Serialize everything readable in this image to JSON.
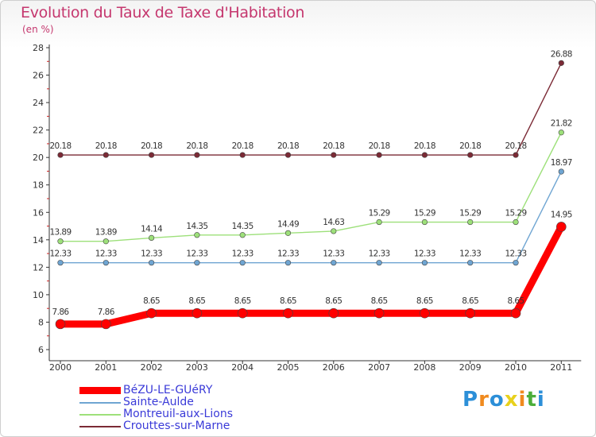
{
  "chart_data": {
    "type": "line",
    "title": "Evolution du Taux de Taxe d'Habitation",
    "ylabel": "(en %)",
    "x": [
      "2000",
      "2001",
      "2002",
      "2003",
      "2004",
      "2005",
      "2006",
      "2007",
      "2008",
      "2009",
      "2010",
      "2011"
    ],
    "ylim": [
      6,
      28
    ],
    "yticks": [
      6,
      8,
      10,
      12,
      14,
      16,
      18,
      20,
      22,
      24,
      26,
      28
    ],
    "grid": false,
    "series": [
      {
        "name": "BéZU-LE-GUéRY",
        "color": "#ff0000",
        "values": [
          7.86,
          7.86,
          8.65,
          8.65,
          8.65,
          8.65,
          8.65,
          8.65,
          8.65,
          8.65,
          8.65,
          14.95
        ],
        "labels": [
          "7.86",
          "7.86",
          "8.65",
          "8.65",
          "8.65",
          "8.65",
          "8.65",
          "8.65",
          "8.65",
          "8.65",
          "8.65",
          "14.95"
        ]
      },
      {
        "name": "Sainte-Aulde",
        "color": "#6fa5d2",
        "values": [
          12.33,
          12.33,
          12.33,
          12.33,
          12.33,
          12.33,
          12.33,
          12.33,
          12.33,
          12.33,
          12.33,
          18.97
        ],
        "labels": [
          "12.33",
          "12.33",
          "12.33",
          "12.33",
          "12.33",
          "12.33",
          "12.33",
          "12.33",
          "12.33",
          "12.33",
          "12.33",
          "18.97"
        ]
      },
      {
        "name": "Montreuil-aux-Lions",
        "color": "#9de07a",
        "values": [
          13.89,
          13.89,
          14.14,
          14.35,
          14.35,
          14.49,
          14.63,
          15.29,
          15.29,
          15.29,
          15.29,
          21.82
        ],
        "labels": [
          "13.89",
          "13.89",
          "14.14",
          "14.35",
          "14.35",
          "14.49",
          "14.63",
          "15.29",
          "15.29",
          "15.29",
          "15.29",
          "21.82"
        ]
      },
      {
        "name": "Crouttes-sur-Marne",
        "color": "#7b2a35",
        "values": [
          20.18,
          20.18,
          20.18,
          20.18,
          20.18,
          20.18,
          20.18,
          20.18,
          20.18,
          20.18,
          20.18,
          26.88
        ],
        "labels": [
          "20.18",
          "20.18",
          "20.18",
          "20.18",
          "20.18",
          "20.18",
          "20.18",
          "20.18",
          "20.18",
          "20.18",
          "20.18",
          "26.88"
        ]
      }
    ]
  },
  "legend": {
    "items": [
      {
        "label": "BéZU-LE-GUéRY",
        "color": "#ff0000"
      },
      {
        "label": "Sainte-Aulde",
        "color": "#6fa5d2"
      },
      {
        "label": "Montreuil-aux-Lions",
        "color": "#9de07a"
      },
      {
        "label": "Crouttes-sur-Marne",
        "color": "#7b2a35"
      }
    ]
  },
  "logo": {
    "text": "Proxiti",
    "letters": [
      "P",
      "r",
      "o",
      "x",
      "i",
      "t",
      "i"
    ],
    "colors": [
      "#2c8fd8",
      "#f08a1e",
      "#2c8fd8",
      "#e8d11c",
      "#f08a1e",
      "#4cae3a",
      "#2c8fd8"
    ]
  }
}
